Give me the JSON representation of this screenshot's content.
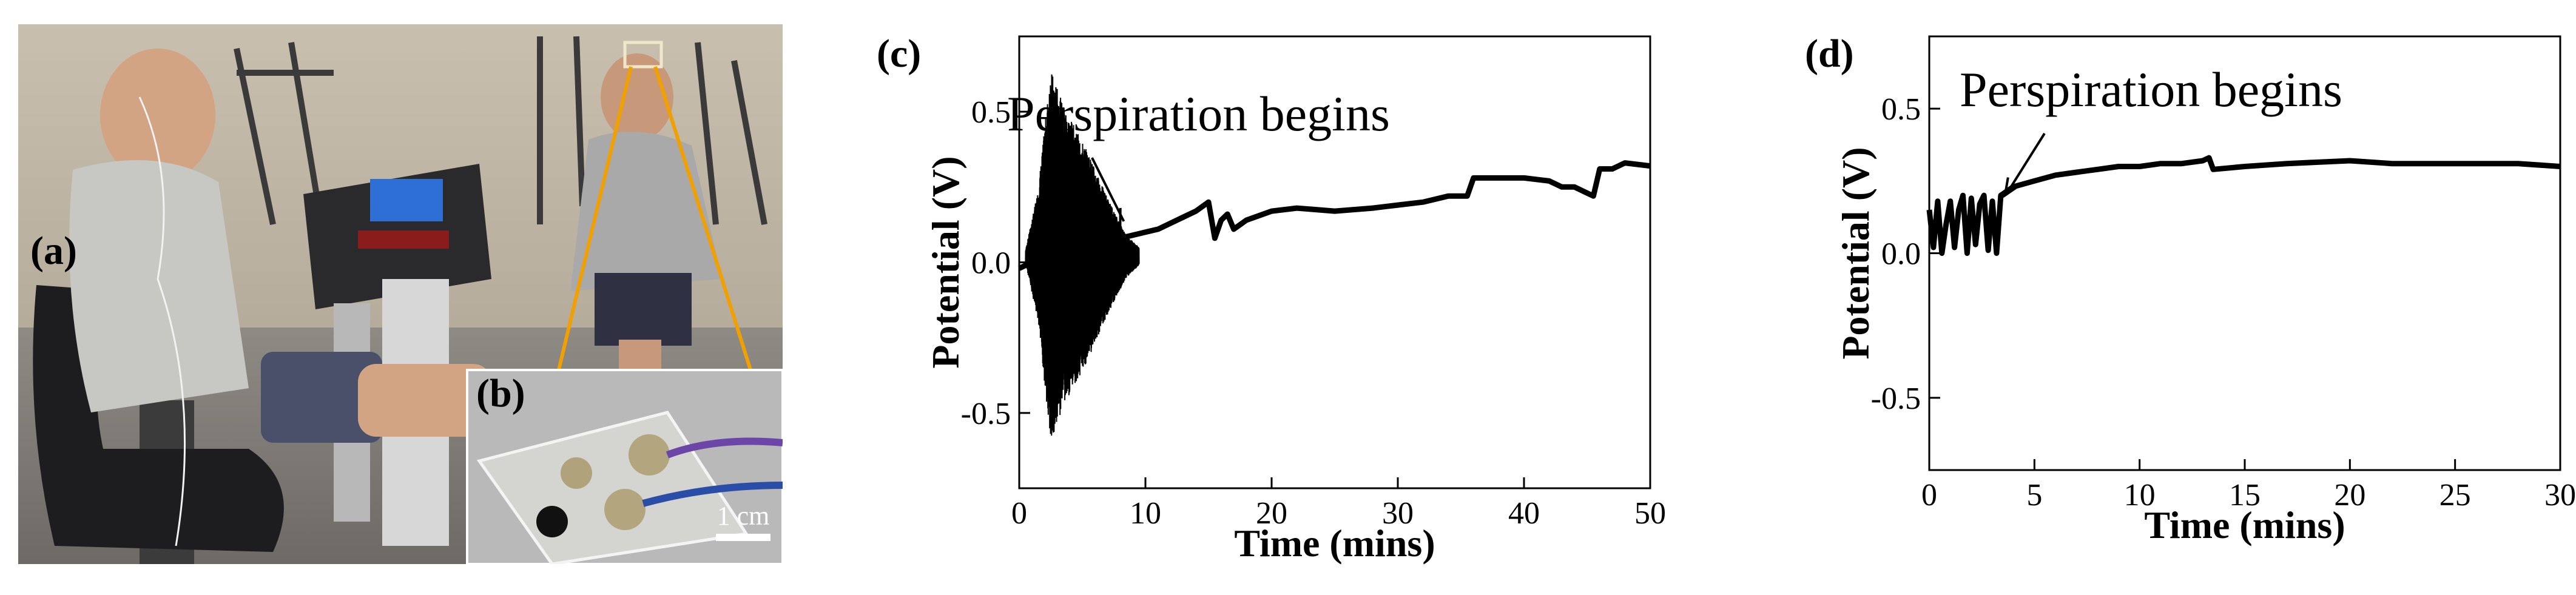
{
  "panels": {
    "a": {
      "label": "(a)"
    },
    "b": {
      "label": "(b)",
      "scale_bar": "1 cm"
    }
  },
  "chart_data": [
    {
      "panel_label": "(c)",
      "type": "line",
      "xlabel": "Time (mins)",
      "ylabel": "Potential (V)",
      "xlim": [
        0,
        50
      ],
      "ylim": [
        -0.75,
        0.75
      ],
      "xticks": [
        0,
        10,
        20,
        30,
        40,
        50
      ],
      "yticks": [
        0.5,
        0.0,
        -0.5
      ],
      "ytick_labels": [
        "0.5",
        "0.0",
        "-0.5"
      ],
      "annotation": {
        "text": "Perspiration begins",
        "arrow_to": [
          8,
          0.12
        ]
      },
      "noise_envelope": [
        [
          0.5,
          0.02
        ],
        [
          1.5,
          0.22
        ],
        [
          2.5,
          0.62
        ],
        [
          3.5,
          0.5
        ],
        [
          4.5,
          0.42
        ],
        [
          5.5,
          0.34
        ],
        [
          6.5,
          0.24
        ],
        [
          7.5,
          0.15
        ],
        [
          8.5,
          0.07
        ],
        [
          9.5,
          0.03
        ]
      ],
      "series": [
        {
          "x": [
            0,
            1,
            2,
            3,
            4,
            5,
            6,
            7,
            8,
            9,
            10,
            11,
            12,
            13,
            14,
            15,
            15.5,
            16,
            16.5,
            17,
            18,
            20,
            22,
            25,
            28,
            30,
            32,
            34,
            35.5,
            36,
            38,
            40,
            42,
            43,
            44,
            45,
            45.5,
            46,
            47,
            48,
            50
          ],
          "y": [
            -0.02,
            0.0,
            0.03,
            0.05,
            0.03,
            0.0,
            -0.02,
            0.04,
            0.08,
            0.09,
            0.1,
            0.11,
            0.13,
            0.15,
            0.17,
            0.2,
            0.08,
            0.14,
            0.16,
            0.11,
            0.14,
            0.17,
            0.18,
            0.17,
            0.18,
            0.19,
            0.2,
            0.22,
            0.22,
            0.28,
            0.28,
            0.28,
            0.27,
            0.25,
            0.25,
            0.23,
            0.22,
            0.31,
            0.31,
            0.33,
            0.32
          ]
        }
      ]
    },
    {
      "panel_label": "(d)",
      "type": "line",
      "xlabel": "Time (mins)",
      "ylabel": "Potential (V)",
      "xlim": [
        0,
        30
      ],
      "ylim": [
        -0.75,
        0.75
      ],
      "xticks": [
        0,
        5,
        10,
        15,
        20,
        25,
        30
      ],
      "yticks": [
        0.5,
        0.0,
        -0.5
      ],
      "ytick_labels": [
        "0.5",
        "0.0",
        "-0.5"
      ],
      "annotation": {
        "text": "Perspiration begins",
        "arrow_to": [
          3.6,
          0.2
        ]
      },
      "series": [
        {
          "x": [
            0,
            0.2,
            0.4,
            0.6,
            0.8,
            1.0,
            1.2,
            1.4,
            1.6,
            1.8,
            2.0,
            2.2,
            2.4,
            2.6,
            2.8,
            3.0,
            3.2,
            3.4,
            3.6,
            4,
            5,
            6,
            7,
            8,
            9,
            10,
            11,
            12,
            13,
            13.3,
            13.5,
            15,
            17,
            20,
            22,
            24,
            26,
            28,
            30
          ],
          "y": [
            0.15,
            0.02,
            0.18,
            0.0,
            0.1,
            0.18,
            0.02,
            0.15,
            0.2,
            0.0,
            0.19,
            0.03,
            0.17,
            0.2,
            0.01,
            0.18,
            0.0,
            0.2,
            0.21,
            0.23,
            0.25,
            0.27,
            0.28,
            0.29,
            0.3,
            0.3,
            0.31,
            0.31,
            0.32,
            0.33,
            0.29,
            0.3,
            0.31,
            0.32,
            0.31,
            0.31,
            0.31,
            0.31,
            0.3
          ]
        }
      ]
    }
  ]
}
